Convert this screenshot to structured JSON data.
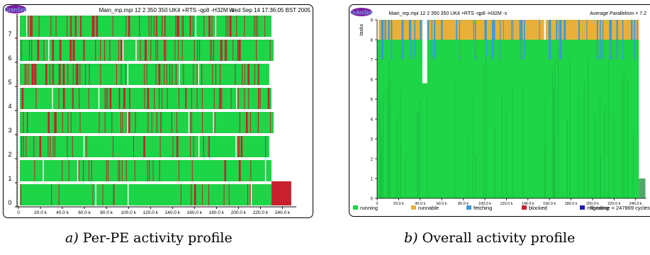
{
  "chart_data": [
    {
      "type": "bar",
      "title": "Main_mp.mpi 12 2 350 350 UK4 +RTS -qp8 -H32M -s",
      "timestamp": "Wed Sep 14 17:36:05 BST 2005",
      "logo": "GranSim",
      "caption_letter": "a)",
      "caption": "Per-PE activity profile",
      "x_ticks": [
        "0",
        "20.0 k",
        "40.0 k",
        "60.0 k",
        "80.0 k",
        "100.0 k",
        "120.0 k",
        "140.0 k",
        "160.0 k",
        "180.0 k",
        "200.0 k",
        "220.0 k",
        "240.0 k"
      ],
      "x_tick_values": [
        0,
        20000,
        40000,
        60000,
        80000,
        100000,
        120000,
        140000,
        160000,
        180000,
        200000,
        220000,
        240000
      ],
      "xlim": [
        0,
        250000
      ],
      "y_ticks": [
        "0",
        "1",
        "2",
        "3",
        "4",
        "5",
        "6",
        "7"
      ],
      "pe_rows": [
        0,
        1,
        2,
        3,
        4,
        5,
        6,
        7
      ],
      "colors": {
        "running": "#1ed447",
        "blocked": "#c8202e",
        "idle_gap": "#ffffff"
      },
      "pe0_blocked_tail": [
        230000,
        248000
      ]
    },
    {
      "type": "area",
      "title": "Main_mp.mpi 12 2 350 350 UK4 +RTS -qp8 -H32M -s",
      "logo": "GrAnSim",
      "average_parallelism": "Average Parallelism = 7.2",
      "runtime_label": "Runtime = 247869 cycles",
      "ylabel": "tasks",
      "caption_letter": "b)",
      "caption": "Overall activity profile",
      "x_ticks": [
        "0",
        "20.0 k",
        "40.0 k",
        "60.0 k",
        "80.0 k",
        "100.0 k",
        "120.0 k",
        "140.0 k",
        "160.0 k",
        "180.0 k",
        "200.0 k",
        "220.0 k",
        "240.0 k"
      ],
      "x_tick_values": [
        0,
        20000,
        40000,
        60000,
        80000,
        100000,
        120000,
        140000,
        160000,
        180000,
        200000,
        220000,
        240000
      ],
      "xlim": [
        0,
        250000
      ],
      "y_ticks": [
        "0",
        "1",
        "2",
        "3",
        "4",
        "5",
        "6",
        "7",
        "8",
        "9"
      ],
      "ylim": [
        0,
        9
      ],
      "running_level": 8,
      "runnable_top": 9,
      "legend": [
        {
          "label": "running",
          "color": "#1ed447"
        },
        {
          "label": "runnable",
          "color": "#e8b03a"
        },
        {
          "label": "fetching",
          "color": "#3a9ad6"
        },
        {
          "label": "blocked",
          "color": "#c8202e"
        },
        {
          "label": "migrating",
          "color": "#1c1cb8"
        }
      ]
    }
  ]
}
